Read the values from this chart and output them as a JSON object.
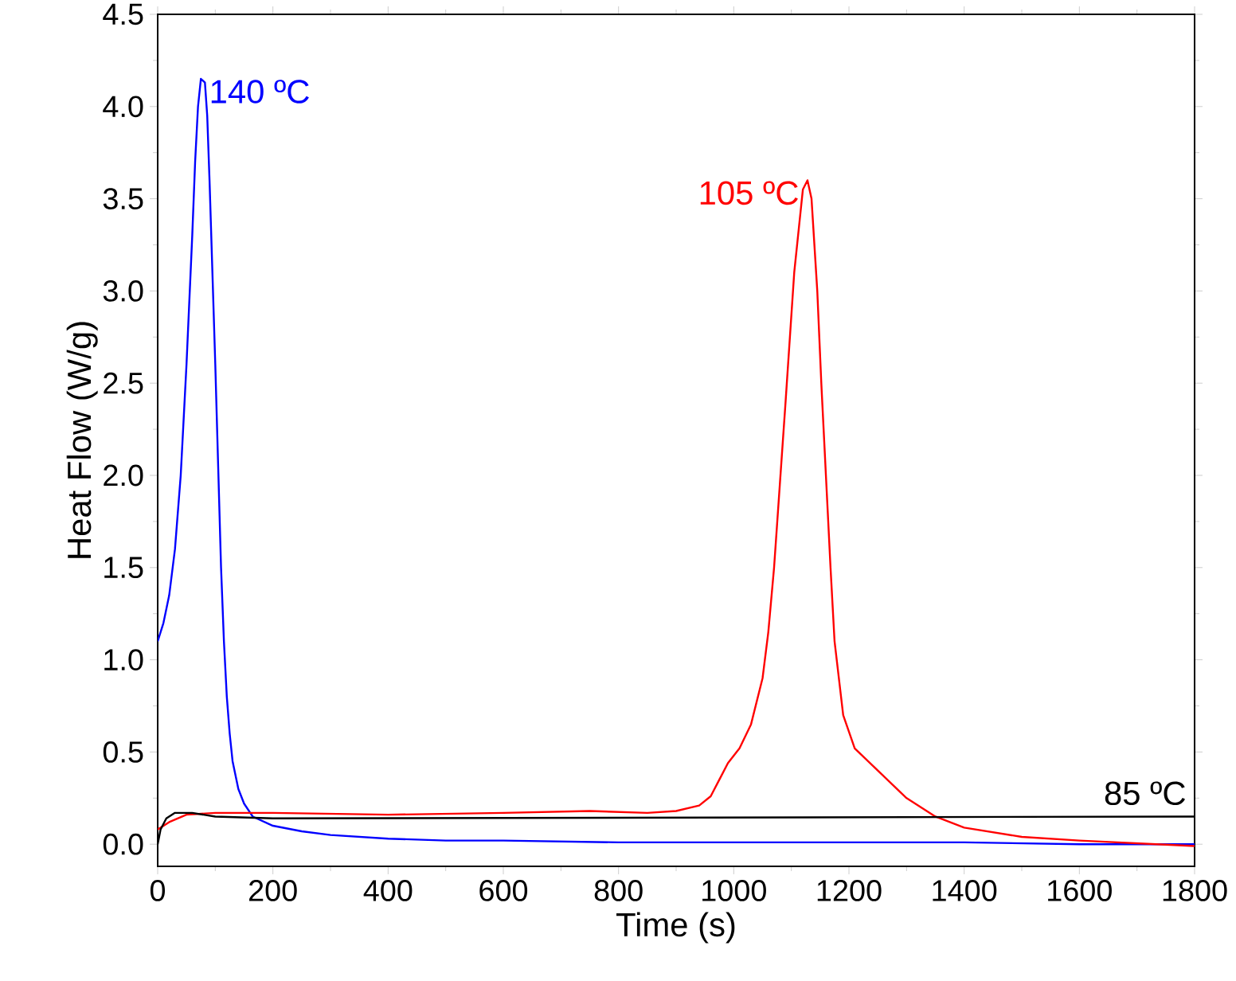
{
  "chart_data": {
    "type": "line",
    "xlabel": "Time (s)",
    "ylabel": "Heat Flow (W/g)",
    "xlim": [
      0,
      1800
    ],
    "xticks": [
      0,
      200,
      400,
      600,
      800,
      1000,
      1200,
      1400,
      1600,
      1800
    ],
    "ylim": [
      -0.12,
      4.5
    ],
    "yticks": [
      {
        "value": 0,
        "label": "0.0"
      },
      {
        "value": 0.5,
        "label": "0.5"
      },
      {
        "value": 1,
        "label": "1.0"
      },
      {
        "value": 1.5,
        "label": "1.5"
      },
      {
        "value": 2,
        "label": "2.0"
      },
      {
        "value": 2.5,
        "label": "2.5"
      },
      {
        "value": 3,
        "label": "3.0"
      },
      {
        "value": 3.5,
        "label": "3.5"
      },
      {
        "value": 4,
        "label": "4.0"
      },
      {
        "value": 4.5,
        "label": "4.5"
      }
    ],
    "grid": false,
    "marker": "none",
    "line_style": "solid",
    "series": [
      {
        "name": "140 ºC",
        "color": "#0000ff",
        "x": [
          0,
          10,
          20,
          30,
          40,
          50,
          60,
          65,
          70,
          75,
          82,
          86,
          90,
          95,
          100,
          105,
          110,
          115,
          120,
          125,
          130,
          140,
          150,
          165,
          200,
          250,
          300,
          400,
          500,
          600,
          800,
          1000,
          1200,
          1400,
          1600,
          1800
        ],
        "values": [
          1.1,
          1.2,
          1.35,
          1.6,
          2.0,
          2.6,
          3.3,
          3.7,
          4.0,
          4.15,
          4.13,
          3.95,
          3.6,
          3.1,
          2.6,
          2.05,
          1.5,
          1.1,
          0.8,
          0.6,
          0.45,
          0.3,
          0.22,
          0.15,
          0.1,
          0.07,
          0.05,
          0.03,
          0.02,
          0.02,
          0.01,
          0.01,
          0.01,
          0.01,
          0.0,
          0.0
        ]
      },
      {
        "name": "105 ºC",
        "color": "#ff0000",
        "x": [
          0,
          20,
          50,
          100,
          200,
          400,
          600,
          750,
          850,
          900,
          940,
          960,
          975,
          990,
          1010,
          1030,
          1050,
          1060,
          1070,
          1080,
          1090,
          1105,
          1120,
          1128,
          1135,
          1145,
          1152,
          1160,
          1168,
          1175,
          1190,
          1210,
          1250,
          1300,
          1350,
          1400,
          1500,
          1600,
          1800
        ],
        "values": [
          0.08,
          0.12,
          0.16,
          0.17,
          0.17,
          0.16,
          0.17,
          0.18,
          0.17,
          0.18,
          0.21,
          0.26,
          0.35,
          0.44,
          0.52,
          0.65,
          0.9,
          1.15,
          1.5,
          1.95,
          2.4,
          3.1,
          3.55,
          3.6,
          3.5,
          3.0,
          2.5,
          2.0,
          1.5,
          1.1,
          0.7,
          0.52,
          0.4,
          0.25,
          0.15,
          0.09,
          0.04,
          0.02,
          -0.01
        ]
      },
      {
        "name": "85 ºC",
        "color": "#000000",
        "x": [
          0,
          5,
          15,
          30,
          60,
          100,
          200,
          1800
        ],
        "values": [
          0.0,
          0.08,
          0.14,
          0.17,
          0.17,
          0.15,
          0.14,
          0.15
        ]
      }
    ]
  }
}
